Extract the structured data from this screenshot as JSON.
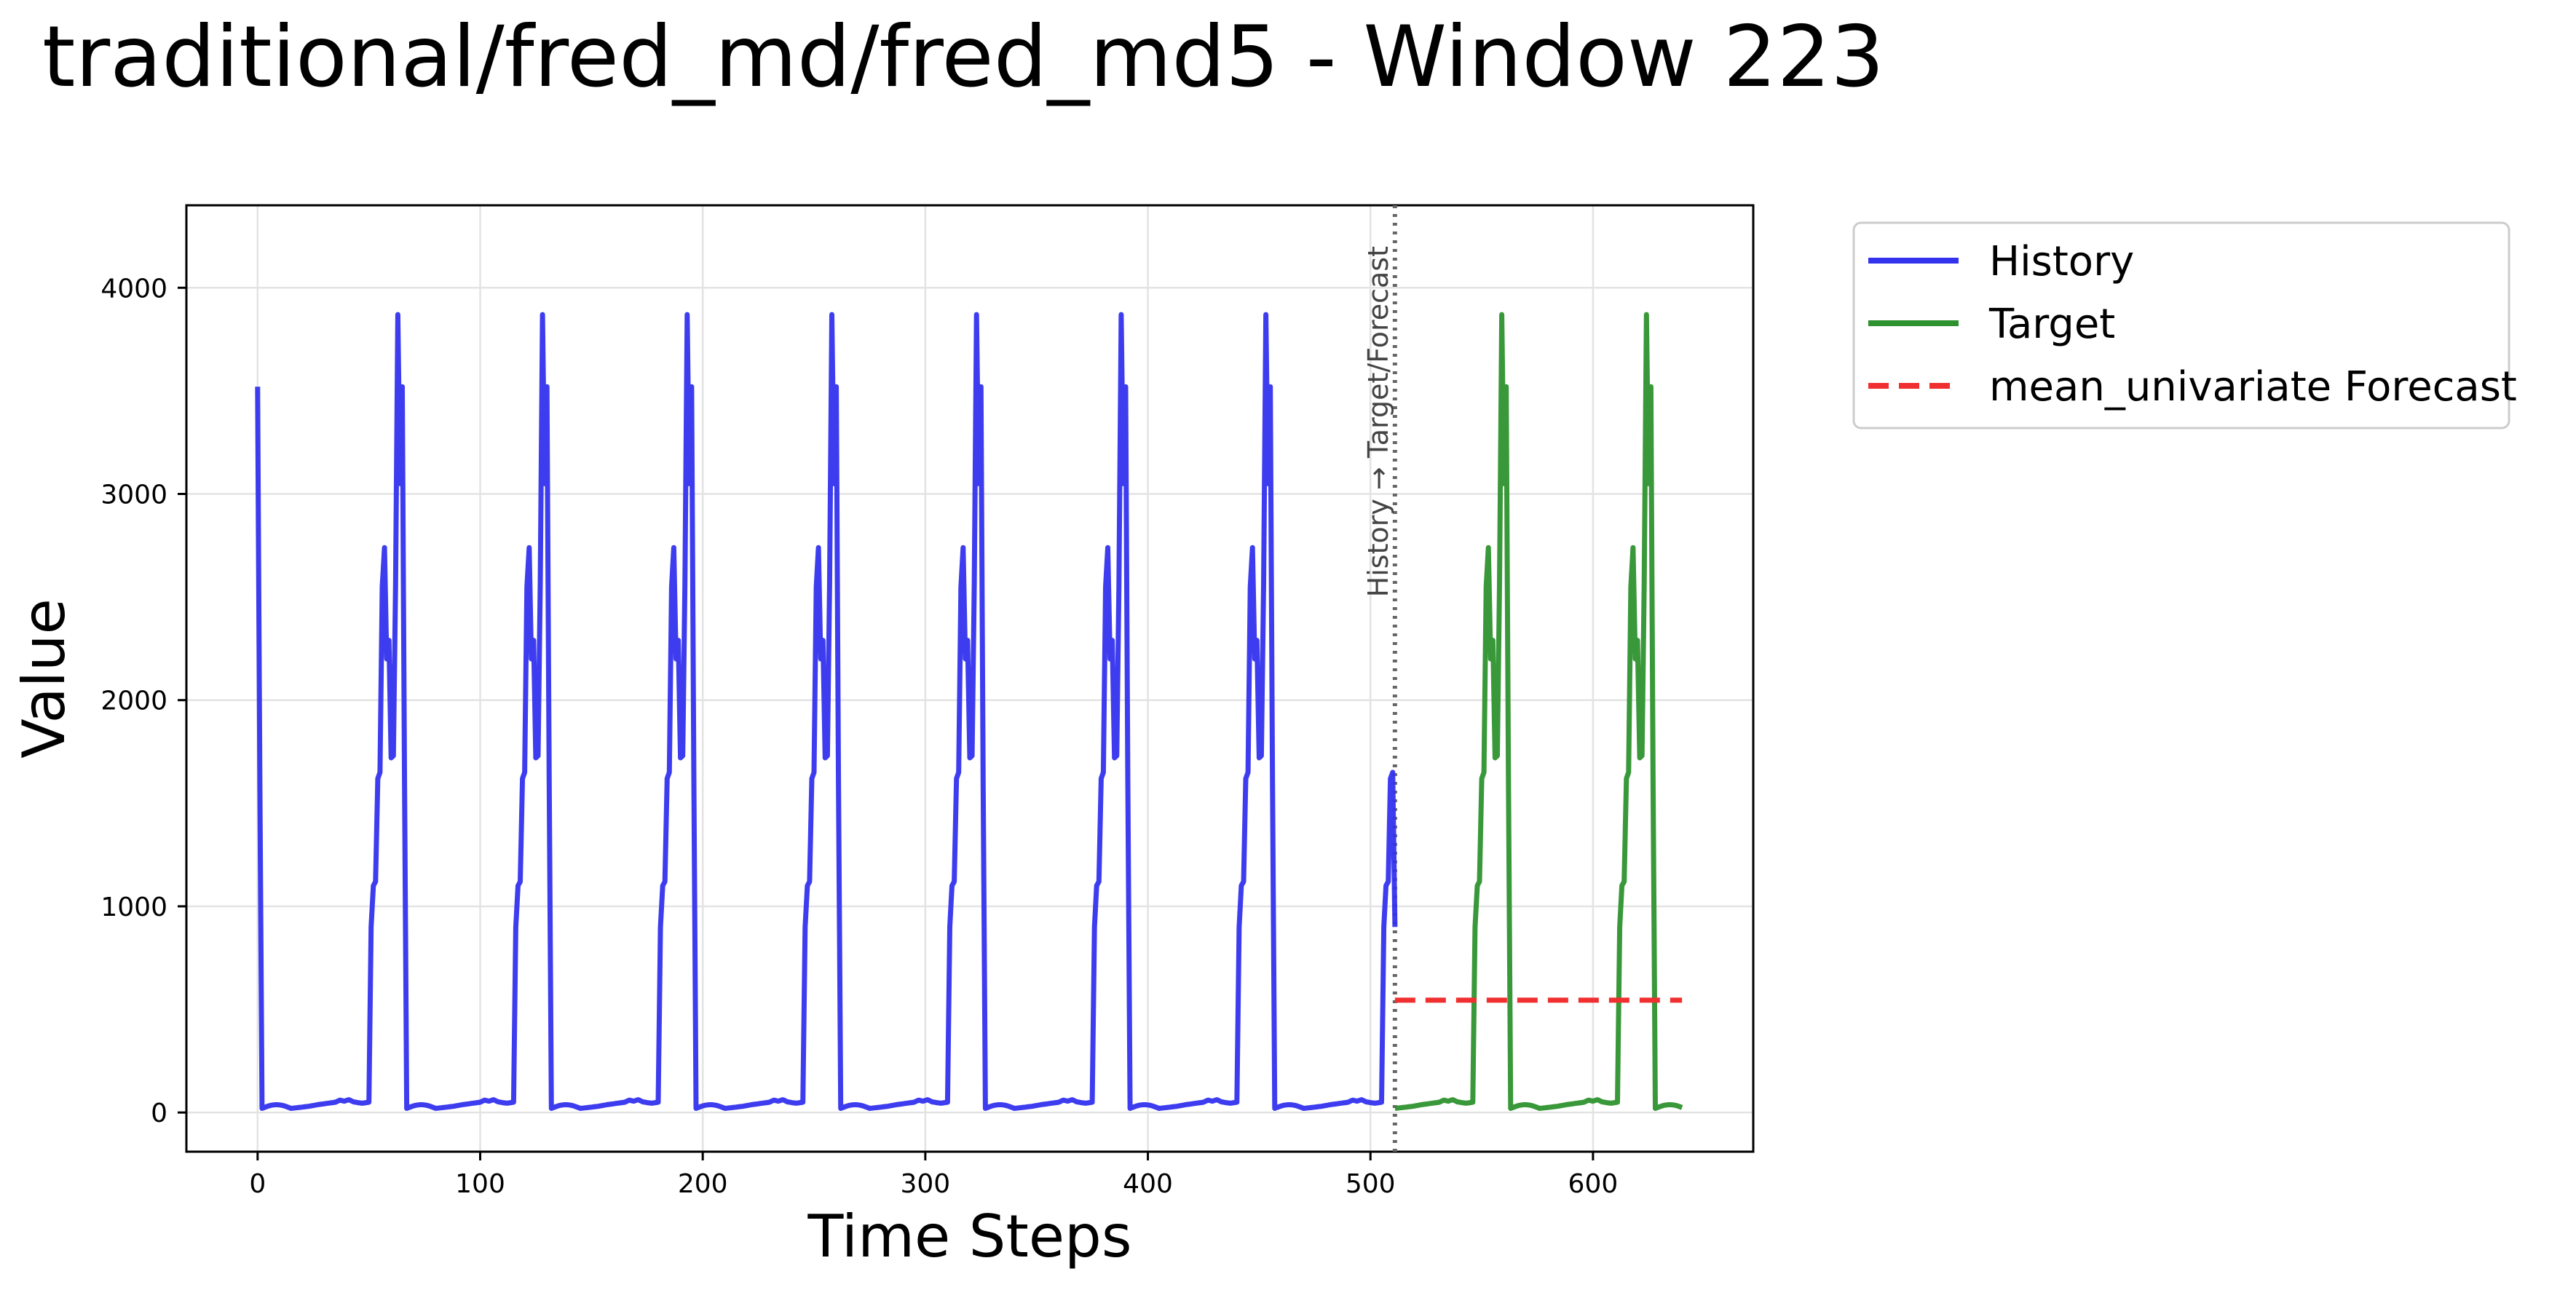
{
  "chart_data": {
    "type": "line",
    "title": "traditional/fred_md/fred_md5 - Window 223",
    "xlabel": "Time Steps",
    "ylabel": "Value",
    "xlim": [
      -32,
      672
    ],
    "ylim": [
      -190,
      4400
    ],
    "xticks": [
      0,
      100,
      200,
      300,
      400,
      500,
      600
    ],
    "yticks": [
      0,
      1000,
      2000,
      3000,
      4000
    ],
    "grid": true,
    "legend_position": "outside-top-right",
    "divider": {
      "x": 511,
      "label": "History → Target/Forecast"
    },
    "colors": {
      "history": "#3333ee",
      "target": "#2e922e",
      "forecast": "#f03030",
      "divider": "#666666"
    },
    "cycle": {
      "period": 65,
      "rise": [
        [
          0,
          20
        ],
        [
          4,
          25
        ],
        [
          8,
          30
        ],
        [
          12,
          38
        ],
        [
          16,
          44
        ],
        [
          20,
          50
        ],
        [
          22,
          60
        ],
        [
          24,
          55
        ],
        [
          26,
          62
        ],
        [
          28,
          52
        ],
        [
          30,
          48
        ],
        [
          32,
          45
        ],
        [
          35,
          50
        ],
        [
          36,
          900
        ],
        [
          37,
          1100
        ],
        [
          38,
          1120
        ],
        [
          39,
          1620
        ],
        [
          40,
          1650
        ],
        [
          41,
          2550
        ],
        [
          42,
          2740
        ],
        [
          43,
          2200
        ],
        [
          44,
          2290
        ],
        [
          45,
          1720
        ],
        [
          46,
          1730
        ],
        [
          47,
          2560
        ],
        [
          48,
          3870
        ],
        [
          49,
          3050
        ],
        [
          50,
          3520
        ],
        [
          51,
          1600
        ],
        [
          52,
          20
        ]
      ]
    },
    "series": [
      {
        "name": "History",
        "x_start": 0,
        "x_end": 511,
        "offset": 15,
        "end_value": 900
      },
      {
        "name": "Target",
        "x_start": 511,
        "x_end": 640,
        "offset": 511
      },
      {
        "name": "mean_univariate Forecast",
        "x": [
          511,
          640
        ],
        "values": [
          545,
          545
        ]
      }
    ]
  }
}
